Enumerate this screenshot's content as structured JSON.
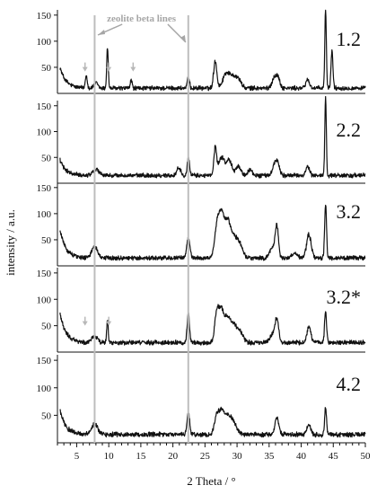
{
  "chart_data": {
    "type": "line",
    "xlabel": "2 Theta / °",
    "ylabel": "intensity / a.u.",
    "xlim": [
      2,
      50
    ],
    "x_ticks": [
      5,
      10,
      15,
      20,
      25,
      30,
      35,
      40,
      45,
      50
    ],
    "panel_ylim": [
      0,
      160
    ],
    "panel_y_ticks": [
      50,
      100,
      150
    ],
    "grid": false,
    "reference_lines": {
      "label": "zeolite beta lines",
      "x": [
        7.8,
        22.4
      ],
      "color": "#bdbdbd"
    },
    "markers_color": "#b8b8b8",
    "series": [
      {
        "name": "1.2",
        "baseline": 10,
        "start_peak": 40,
        "peaks": [
          [
            6.5,
            25,
            0.15
          ],
          [
            8.0,
            10,
            0.3
          ],
          [
            9.8,
            78,
            0.12
          ],
          [
            13.5,
            15,
            0.15
          ],
          [
            22.4,
            20,
            0.18
          ],
          [
            26.6,
            52,
            0.25
          ],
          [
            28.3,
            28,
            0.5
          ],
          [
            29.4,
            22,
            0.5
          ],
          [
            30.3,
            14,
            0.4
          ],
          [
            35.8,
            20,
            0.35
          ],
          [
            36.4,
            18,
            0.3
          ],
          [
            41.0,
            16,
            0.3
          ],
          [
            43.8,
            150,
            0.12
          ],
          [
            44.8,
            72,
            0.15
          ]
        ],
        "arrows_x": [
          6.3,
          10.0,
          13.8
        ]
      },
      {
        "name": "2.2",
        "baseline": 15,
        "start_peak": 30,
        "peaks": [
          [
            8.0,
            12,
            0.5
          ],
          [
            20.9,
            15,
            0.3
          ],
          [
            22.4,
            35,
            0.18
          ],
          [
            26.6,
            52,
            0.2
          ],
          [
            27.6,
            35,
            0.5
          ],
          [
            28.8,
            28,
            0.4
          ],
          [
            30.2,
            18,
            0.4
          ],
          [
            32.0,
            12,
            0.3
          ],
          [
            35.9,
            22,
            0.35
          ],
          [
            36.4,
            18,
            0.3
          ],
          [
            41.0,
            16,
            0.3
          ],
          [
            43.8,
            150,
            0.12
          ]
        ],
        "arrows_x": []
      },
      {
        "name": "3.2",
        "baseline": 15,
        "start_peak": 55,
        "peaks": [
          [
            7.8,
            22,
            0.45
          ],
          [
            22.4,
            38,
            0.25
          ],
          [
            26.8,
            45,
            0.35
          ],
          [
            27.5,
            78,
            0.45
          ],
          [
            28.5,
            60,
            0.5
          ],
          [
            29.5,
            35,
            0.6
          ],
          [
            30.5,
            20,
            0.5
          ],
          [
            35.5,
            20,
            0.4
          ],
          [
            36.2,
            60,
            0.25
          ],
          [
            39.0,
            10,
            0.4
          ],
          [
            41.2,
            45,
            0.35
          ],
          [
            43.8,
            102,
            0.15
          ]
        ],
        "arrows_x": []
      },
      {
        "name": "3.2*",
        "baseline": 18,
        "start_peak": 55,
        "peaks": [
          [
            7.8,
            12,
            0.45
          ],
          [
            9.8,
            42,
            0.12
          ],
          [
            22.4,
            55,
            0.18
          ],
          [
            26.8,
            50,
            0.3
          ],
          [
            27.5,
            62,
            0.4
          ],
          [
            28.5,
            45,
            0.45
          ],
          [
            29.5,
            30,
            0.5
          ],
          [
            30.5,
            18,
            0.5
          ],
          [
            35.5,
            15,
            0.4
          ],
          [
            36.2,
            42,
            0.3
          ],
          [
            41.2,
            30,
            0.3
          ],
          [
            43.8,
            60,
            0.15
          ]
        ],
        "arrows_x": [
          6.3,
          10.0
        ]
      },
      {
        "name": "4.2",
        "baseline": 15,
        "start_peak": 45,
        "peaks": [
          [
            7.8,
            20,
            0.45
          ],
          [
            22.4,
            40,
            0.2
          ],
          [
            26.8,
            30,
            0.35
          ],
          [
            27.6,
            42,
            0.45
          ],
          [
            28.6,
            30,
            0.45
          ],
          [
            29.5,
            20,
            0.5
          ],
          [
            36.2,
            30,
            0.3
          ],
          [
            41.2,
            20,
            0.3
          ],
          [
            43.8,
            48,
            0.15
          ]
        ],
        "arrows_x": []
      }
    ]
  }
}
